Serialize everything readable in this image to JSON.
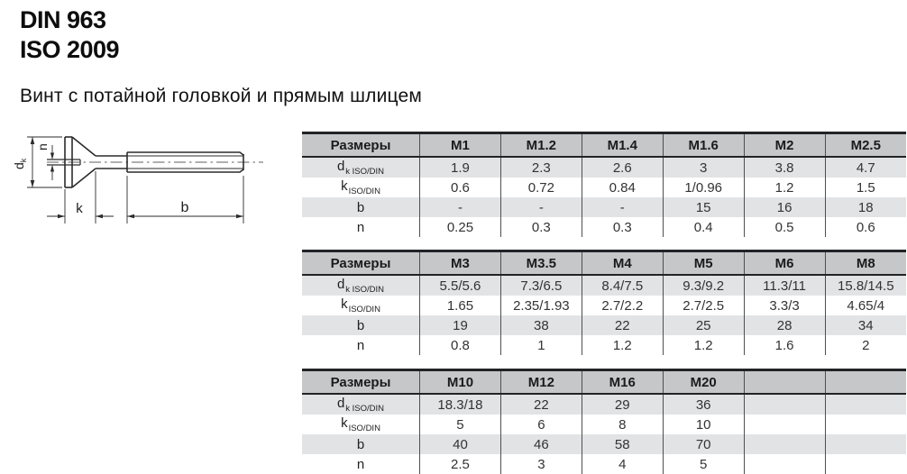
{
  "header": {
    "standard_din": "DIN 963",
    "standard_iso": "ISO 2009",
    "subtitle": "Винт с потайной головкой и прямым шлицем"
  },
  "diagram": {
    "labels": {
      "dk_base": "d",
      "dk_sub": "k",
      "n": "n",
      "k": "k",
      "b": "b"
    }
  },
  "tables": [
    {
      "columns": [
        "Размеры",
        "M1",
        "M1.2",
        "M1.4",
        "M1.6",
        "M2",
        "M2.5"
      ],
      "rows": [
        {
          "label": "d",
          "sub": "k ISO/DIN",
          "cells": [
            "1.9",
            "2.3",
            "2.6",
            "3",
            "3.8",
            "4.7"
          ]
        },
        {
          "label": "k",
          "sub": "ISO/DIN",
          "cells": [
            "0.6",
            "0.72",
            "0.84",
            "1/0.96",
            "1.2",
            "1.5"
          ]
        },
        {
          "label": "b",
          "sub": "",
          "cells": [
            "-",
            "-",
            "-",
            "15",
            "16",
            "18"
          ]
        },
        {
          "label": "n",
          "sub": "",
          "cells": [
            "0.25",
            "0.3",
            "0.3",
            "0.4",
            "0.5",
            "0.6"
          ]
        }
      ]
    },
    {
      "columns": [
        "Размеры",
        "M3",
        "M3.5",
        "M4",
        "M5",
        "M6",
        "M8"
      ],
      "rows": [
        {
          "label": "d",
          "sub": "k ISO/DIN",
          "cells": [
            "5.5/5.6",
            "7.3/6.5",
            "8.4/7.5",
            "9.3/9.2",
            "11.3/11",
            "15.8/14.5"
          ]
        },
        {
          "label": "k",
          "sub": "ISO/DIN",
          "cells": [
            "1.65",
            "2.35/1.93",
            "2.7/2.2",
            "2.7/2.5",
            "3.3/3",
            "4.65/4"
          ]
        },
        {
          "label": "b",
          "sub": "",
          "cells": [
            "19",
            "38",
            "22",
            "25",
            "28",
            "34"
          ]
        },
        {
          "label": "n",
          "sub": "",
          "cells": [
            "0.8",
            "1",
            "1.2",
            "1.2",
            "1.6",
            "2"
          ]
        }
      ]
    },
    {
      "columns": [
        "Размеры",
        "M10",
        "M12",
        "M16",
        "M20",
        "",
        ""
      ],
      "rows": [
        {
          "label": "d",
          "sub": "k ISO/DIN",
          "cells": [
            "18.3/18",
            "22",
            "29",
            "36",
            "",
            ""
          ]
        },
        {
          "label": "k",
          "sub": "ISO/DIN",
          "cells": [
            "5",
            "6",
            "8",
            "10",
            "",
            ""
          ]
        },
        {
          "label": "b",
          "sub": "",
          "cells": [
            "40",
            "46",
            "58",
            "70",
            "",
            ""
          ]
        },
        {
          "label": "n",
          "sub": "",
          "cells": [
            "2.5",
            "3",
            "4",
            "5",
            "",
            ""
          ]
        }
      ]
    }
  ]
}
